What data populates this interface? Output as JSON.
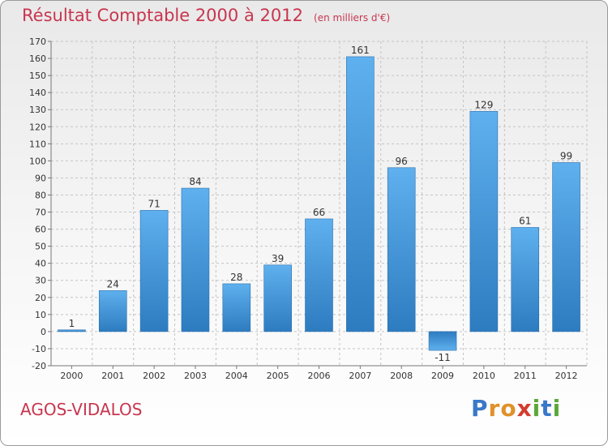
{
  "header": {
    "title": "Résultat Comptable 2000 à 2012",
    "subtitle": "(en milliers d'€)"
  },
  "footer": {
    "commune": "AGOS-VIDALOS",
    "brand_letters": [
      {
        "ch": "P",
        "color": "#3a78c8"
      },
      {
        "ch": "r",
        "color": "#e0912a"
      },
      {
        "ch": "o",
        "color": "#e0912a"
      },
      {
        "ch": "x",
        "color": "#d43b2e"
      },
      {
        "ch": "i",
        "color": "#5aa838"
      },
      {
        "ch": "t",
        "color": "#3a78c8"
      },
      {
        "ch": "i",
        "color": "#5aa838"
      }
    ]
  },
  "chart_data": {
    "type": "bar",
    "title": "Résultat Comptable 2000 à 2012",
    "subtitle": "(en milliers d'€)",
    "categories": [
      "2000",
      "2001",
      "2002",
      "2003",
      "2004",
      "2005",
      "2006",
      "2007",
      "2008",
      "2009",
      "2010",
      "2011",
      "2012"
    ],
    "values": [
      1,
      24,
      71,
      84,
      28,
      39,
      66,
      161,
      96,
      -11,
      129,
      61,
      99
    ],
    "value_labels": [
      "1",
      "24",
      "71",
      "84",
      "28",
      "39",
      "66",
      "161",
      "96",
      "-11",
      "129",
      "61",
      "99"
    ],
    "ylim": [
      -20,
      170
    ],
    "yticks": [
      -20,
      -10,
      0,
      10,
      20,
      30,
      40,
      50,
      60,
      70,
      80,
      90,
      100,
      110,
      120,
      130,
      140,
      150,
      160,
      170
    ],
    "grid": true,
    "bar_color": "#3a8fd6"
  }
}
